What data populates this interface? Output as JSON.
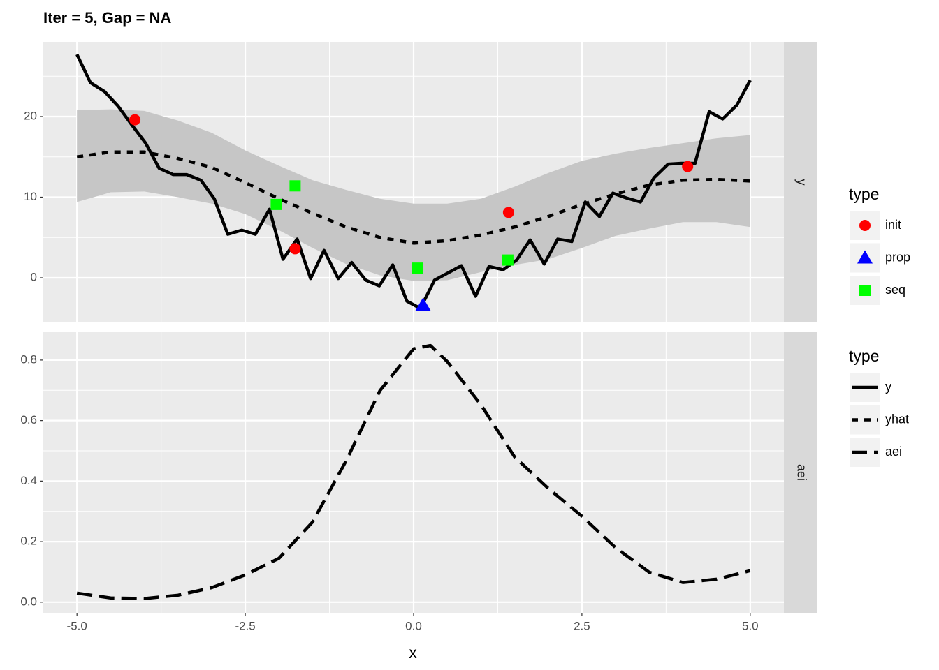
{
  "chart_data": [
    {
      "type": "line",
      "title": "Iter = 5, Gap = NA",
      "strip": "y",
      "legend_title": "type",
      "xlim": [
        -5.5,
        5.5
      ],
      "xticks": [
        {
          "value": -5,
          "label": "-5.0"
        },
        {
          "value": -2.5,
          "label": "-2.5"
        },
        {
          "value": 0,
          "label": "0.0"
        },
        {
          "value": 2.5,
          "label": "2.5"
        },
        {
          "value": 5,
          "label": "5.0"
        }
      ],
      "minor_xticks": [
        -3.75,
        -1.25,
        1.25,
        3.75
      ],
      "ylim": [
        -5.54,
        29.26
      ],
      "yticks": [
        0,
        10,
        20
      ],
      "minor_yticks": [
        5,
        15,
        25
      ],
      "grid": true,
      "series": [
        {
          "type": "ribbon",
          "color": "#c6c6c6",
          "x": [
            -5,
            -4.5,
            -4,
            -3.5,
            -3,
            -2.5,
            -2,
            -1.5,
            -1,
            -0.5,
            0,
            0.5,
            1,
            1.5,
            2,
            2.5,
            3,
            3.5,
            4,
            4.5,
            5
          ],
          "lower": [
            9.4,
            10.6,
            10.7,
            10.0,
            9.2,
            7.9,
            5.9,
            3.7,
            1.7,
            0.3,
            -0.4,
            -0.3,
            0.7,
            1.6,
            2.3,
            3.7,
            5.2,
            6.1,
            6.9,
            6.9,
            6.3
          ],
          "upper": [
            20.8,
            20.9,
            20.7,
            19.5,
            18.0,
            15.8,
            13.9,
            12.1,
            10.9,
            9.8,
            9.2,
            9.2,
            9.8,
            11.3,
            13.0,
            14.5,
            15.4,
            16.1,
            16.7,
            17.3,
            17.7
          ]
        },
        {
          "name": "y",
          "type": "line",
          "linestyle": "solid",
          "color": "#000000",
          "x": [
            -5.0,
            -4.8,
            -4.59,
            -4.39,
            -4.18,
            -3.98,
            -3.78,
            -3.57,
            -3.37,
            -3.16,
            -2.96,
            -2.76,
            -2.55,
            -2.35,
            -2.14,
            -1.94,
            -1.73,
            -1.53,
            -1.33,
            -1.12,
            -0.92,
            -0.71,
            -0.51,
            -0.31,
            -0.1,
            0.1,
            0.31,
            0.51,
            0.71,
            0.92,
            1.12,
            1.33,
            1.53,
            1.73,
            1.94,
            2.14,
            2.35,
            2.55,
            2.76,
            2.96,
            3.16,
            3.37,
            3.57,
            3.78,
            3.98,
            4.18,
            4.39,
            4.59,
            4.8,
            5.0
          ],
          "values": [
            27.7,
            24.2,
            23.1,
            21.3,
            18.9,
            16.7,
            13.6,
            12.8,
            12.8,
            12.1,
            9.8,
            5.4,
            5.9,
            5.4,
            8.5,
            2.3,
            4.8,
            -0.1,
            3.4,
            -0.1,
            1.9,
            -0.3,
            -1.0,
            1.6,
            -2.9,
            -3.8,
            -0.3,
            0.6,
            1.5,
            -2.3,
            1.4,
            1.0,
            2.2,
            4.7,
            1.7,
            4.8,
            4.5,
            9.4,
            7.6,
            10.5,
            9.9,
            9.4,
            12.4,
            14.1,
            14.2,
            14.2,
            20.6,
            19.7,
            21.4,
            24.5
          ]
        },
        {
          "name": "yhat",
          "type": "line",
          "linestyle": "dashed",
          "color": "#000000",
          "x": [
            -5,
            -4.5,
            -4,
            -3.5,
            -3,
            -2.5,
            -2,
            -1.5,
            -1,
            -0.5,
            0,
            0.5,
            1,
            1.5,
            2,
            2.5,
            3,
            3.5,
            4,
            4.5,
            5
          ],
          "values": [
            15.0,
            15.6,
            15.6,
            14.8,
            13.7,
            11.8,
            9.8,
            8.0,
            6.3,
            5.0,
            4.3,
            4.6,
            5.3,
            6.3,
            7.6,
            9.1,
            10.4,
            11.5,
            12.1,
            12.2,
            12.0
          ]
        },
        {
          "name": "init",
          "type": "scatter",
          "shape": "circle",
          "color": "#ff0000",
          "x": [
            -4.14,
            -1.76,
            1.41,
            4.07
          ],
          "values": [
            19.6,
            3.6,
            8.1,
            13.8
          ]
        },
        {
          "name": "prop",
          "type": "scatter",
          "shape": "triangle",
          "color": "#0000ff",
          "x": [
            0.14
          ],
          "values": [
            -3.4
          ]
        },
        {
          "name": "seq",
          "type": "scatter",
          "shape": "square",
          "color": "#00ff00",
          "x": [
            -2.04,
            -1.76,
            0.06,
            1.4
          ],
          "values": [
            9.1,
            11.4,
            1.2,
            2.2
          ]
        }
      ]
    },
    {
      "type": "line",
      "strip": "aei",
      "xlabel": "x",
      "legend_title": "type",
      "xlim": [
        -5.5,
        5.5
      ],
      "xticks": [
        {
          "value": -5,
          "label": "-5.0"
        },
        {
          "value": -2.5,
          "label": "-2.5"
        },
        {
          "value": 0,
          "label": "0.0"
        },
        {
          "value": 2.5,
          "label": "2.5"
        },
        {
          "value": 5,
          "label": "5.0"
        }
      ],
      "minor_xticks": [
        -3.75,
        -1.25,
        1.25,
        3.75
      ],
      "ylim": [
        -0.035,
        0.892
      ],
      "yticks": [
        {
          "value": 0,
          "label": "0.0"
        },
        {
          "value": 0.2,
          "label": "0.2"
        },
        {
          "value": 0.4,
          "label": "0.4"
        },
        {
          "value": 0.6,
          "label": "0.6"
        },
        {
          "value": 0.8,
          "label": "0.8"
        }
      ],
      "minor_yticks": [
        0.1,
        0.3,
        0.5,
        0.7
      ],
      "grid": true,
      "series": [
        {
          "name": "aei",
          "type": "line",
          "linestyle": "longdash",
          "color": "#000000",
          "x": [
            -5,
            -4.5,
            -4,
            -3.5,
            -3,
            -2.5,
            -2,
            -1.5,
            -1,
            -0.5,
            0,
            0.25,
            0.5,
            1,
            1.5,
            2,
            2.5,
            3,
            3.5,
            4,
            4.5,
            5
          ],
          "values": [
            0.03,
            0.014,
            0.012,
            0.023,
            0.048,
            0.09,
            0.145,
            0.265,
            0.468,
            0.699,
            0.837,
            0.848,
            0.795,
            0.652,
            0.48,
            0.376,
            0.284,
            0.18,
            0.099,
            0.065,
            0.076,
            0.104
          ]
        }
      ]
    }
  ]
}
